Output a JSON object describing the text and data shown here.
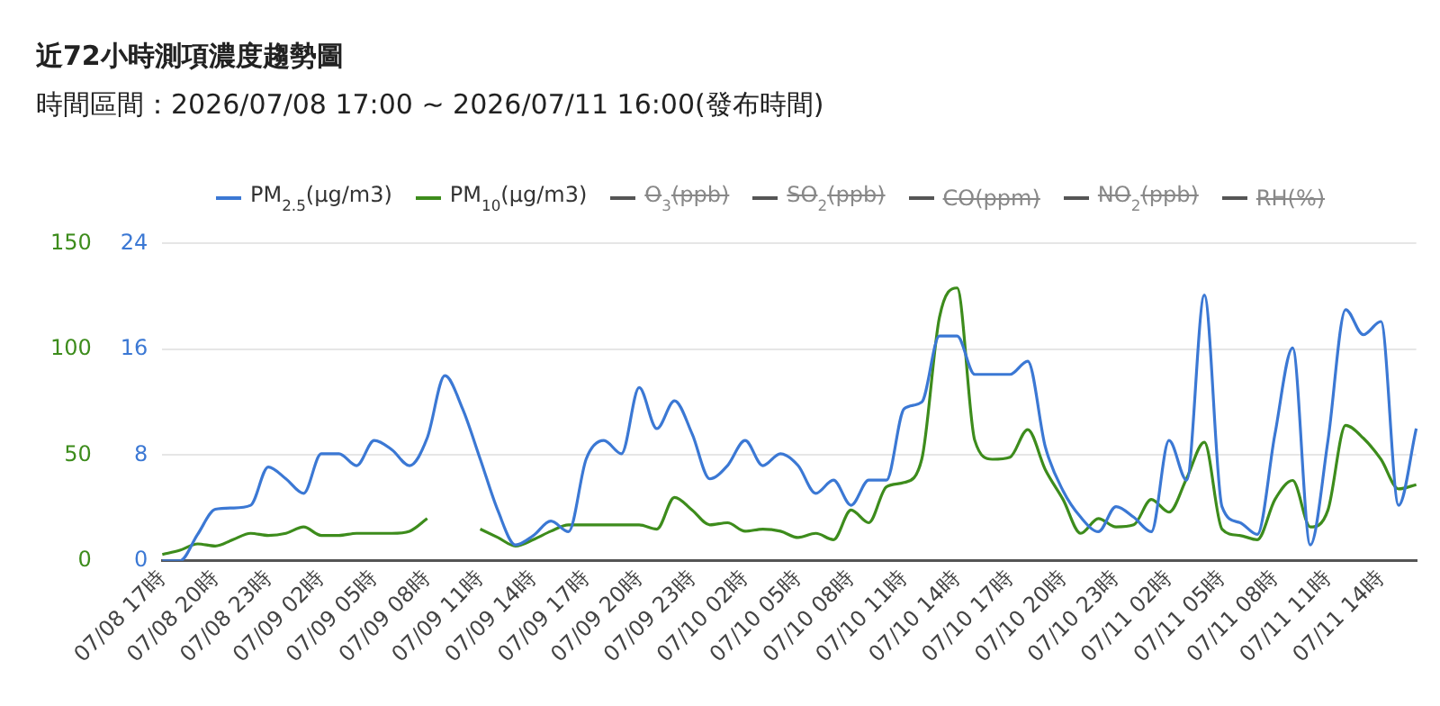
{
  "chart_data": {
    "type": "line",
    "title": "近72小時測項濃度趨勢圖",
    "subtitle": "時間區間：2026/07/08 17:00 ~ 2026/07/11 16:00(發布時間)",
    "categories": [
      "07/08 17時",
      null,
      null,
      "07/08 20時",
      null,
      null,
      "07/08 23時",
      null,
      null,
      "07/09 02時",
      null,
      null,
      "07/09 05時",
      null,
      null,
      "07/09 08時",
      null,
      null,
      "07/09 11時",
      null,
      null,
      "07/09 14時",
      null,
      null,
      "07/09 17時",
      null,
      null,
      "07/09 20時",
      null,
      null,
      "07/09 23時",
      null,
      null,
      "07/10 02時",
      null,
      null,
      "07/10 05時",
      null,
      null,
      "07/10 08時",
      null,
      null,
      "07/10 11時",
      null,
      null,
      "07/10 14時",
      null,
      null,
      "07/10 17時",
      null,
      null,
      "07/10 20時",
      null,
      null,
      "07/10 23時",
      null,
      null,
      "07/11 02時",
      null,
      null,
      "07/11 05時",
      null,
      null,
      "07/11 08時",
      null,
      null,
      "07/11 11時",
      null,
      null,
      "07/11 14時",
      null,
      null
    ],
    "series": [
      {
        "name": "PM$_{2.5}$(μg/m3)",
        "color": "#3b78d4",
        "axis": "y2",
        "values": [
          0,
          0,
          2,
          3.9,
          4,
          4.2,
          7.1,
          6.2,
          5.1,
          8.1,
          8.1,
          7.2,
          9.1,
          8.4,
          7.2,
          9.3,
          14,
          11.5,
          7.7,
          3.8,
          1.2,
          1.9,
          3,
          2.2,
          7.7,
          9.1,
          8.1,
          13.1,
          10,
          12.1,
          9.6,
          6.2,
          7.2,
          9.1,
          7.2,
          8.1,
          7.2,
          5.1,
          6.1,
          4.2,
          6.1,
          6.1,
          11.5,
          12,
          17,
          17,
          14.1,
          14.1,
          14.1,
          15.1,
          8.6,
          5.3,
          3.3,
          2.2,
          4.1,
          3.3,
          2.2,
          9.1,
          6.1,
          20.1,
          4.1,
          2.9,
          2,
          9.6,
          16.1,
          1.2,
          9.1,
          19,
          17.1,
          18.1,
          4.2,
          10
        ]
      },
      {
        "name": "PM$_{10}$(μg/m3)",
        "color": "#3d8c1c",
        "values": [
          3,
          5,
          8,
          7,
          10,
          13,
          12,
          13,
          16,
          12,
          12,
          13,
          13,
          13,
          14,
          20,
          null,
          null,
          15,
          11,
          7,
          10,
          14,
          17,
          17,
          17,
          17,
          17,
          15,
          30,
          24,
          17,
          18,
          14,
          15,
          14,
          11,
          13,
          10,
          24,
          18,
          35,
          37,
          48,
          115,
          129,
          57,
          48,
          49,
          62,
          43,
          29,
          13,
          20,
          16,
          17,
          29,
          23,
          39,
          56,
          15,
          12,
          10,
          29,
          38,
          16,
          24,
          64,
          58,
          48,
          34,
          36
        ]
      },
      {
        "name": "O$_{3}$(ppb)",
        "color": "#555555",
        "values": [
          null,
          null,
          null,
          null,
          null,
          null,
          null,
          null,
          null,
          null,
          null,
          null,
          null,
          null,
          null,
          null,
          null,
          null,
          null,
          null,
          null,
          null,
          null,
          null,
          null,
          null,
          null,
          null,
          null,
          null,
          null,
          null,
          null,
          null,
          null,
          null,
          null,
          null,
          null,
          null,
          null,
          null,
          null,
          null,
          null,
          null,
          null,
          null,
          null,
          null,
          null,
          null,
          null,
          null,
          null,
          null,
          null,
          null,
          null,
          null,
          null,
          null,
          null,
          null,
          null,
          null,
          null,
          null,
          null,
          null,
          null,
          null
        ]
      },
      {
        "name": "SO$_{2}$(ppb)",
        "color": "#555555",
        "values": [
          null,
          null,
          null,
          null,
          null,
          null,
          null,
          null,
          null,
          null,
          null,
          null,
          null,
          null,
          null,
          null,
          null,
          null,
          null,
          null,
          null,
          null,
          null,
          null,
          null,
          null,
          null,
          null,
          null,
          null,
          null,
          null,
          null,
          null,
          null,
          null,
          null,
          null,
          null,
          null,
          null,
          null,
          null,
          null,
          null,
          null,
          null,
          null,
          null,
          null,
          null,
          null,
          null,
          null,
          null,
          null,
          null,
          null,
          null,
          null,
          null,
          null,
          null,
          null,
          null,
          null,
          null,
          null,
          null,
          null,
          null,
          null
        ]
      },
      {
        "name": "CO(ppm)",
        "color": "#555555",
        "values": [
          null,
          null,
          null,
          null,
          null,
          null,
          null,
          null,
          null,
          null,
          null,
          null,
          null,
          null,
          null,
          null,
          null,
          null,
          null,
          null,
          null,
          null,
          null,
          null,
          null,
          null,
          null,
          null,
          null,
          null,
          null,
          null,
          null,
          null,
          null,
          null,
          null,
          null,
          null,
          null,
          null,
          null,
          null,
          null,
          null,
          null,
          null,
          null,
          null,
          null,
          null,
          null,
          null,
          null,
          null,
          null,
          null,
          null,
          null,
          null,
          null,
          null,
          null,
          null,
          null,
          null,
          null,
          null,
          null,
          null,
          null,
          null
        ]
      },
      {
        "name": "NO$_{2}$(ppb)",
        "color": "#555555",
        "values": [
          null,
          null,
          null,
          null,
          null,
          null,
          null,
          null,
          null,
          null,
          null,
          null,
          null,
          null,
          null,
          null,
          null,
          null,
          null,
          null,
          null,
          null,
          null,
          null,
          null,
          null,
          null,
          null,
          null,
          null,
          null,
          null,
          null,
          null,
          null,
          null,
          null,
          null,
          null,
          null,
          null,
          null,
          null,
          null,
          null,
          null,
          null,
          null,
          null,
          null,
          null,
          null,
          null,
          null,
          null,
          null,
          null,
          null,
          null,
          null,
          null,
          null,
          null,
          null,
          null,
          null,
          null,
          null,
          null,
          null,
          null,
          null
        ]
      },
      {
        "name": "RH(%)",
        "color": "#555555",
        "values": [
          null,
          null,
          null,
          null,
          null,
          null,
          null,
          null,
          null,
          null,
          null,
          null,
          null,
          null,
          null,
          null,
          null,
          null,
          null,
          null,
          null,
          null,
          null,
          null,
          null,
          null,
          null,
          null,
          null,
          null,
          null,
          null,
          null,
          null,
          null,
          null,
          null,
          null,
          null,
          null,
          null,
          null,
          null,
          null,
          null,
          null,
          null,
          null,
          null,
          null,
          null,
          null,
          null,
          null,
          null,
          null,
          null,
          null,
          null,
          null,
          null,
          null,
          null,
          null,
          null,
          null,
          null,
          null,
          null,
          null,
          null,
          null
        ]
      }
    ],
    "ylim": [
      0,
      150
    ],
    "yticks": [
      0,
      50,
      100,
      150
    ],
    "y2lim": [
      0,
      24
    ],
    "y2ticks": [
      0,
      8,
      16,
      24
    ],
    "grid": "y",
    "legend": "top",
    "marker": "none",
    "line_style": "solid"
  }
}
